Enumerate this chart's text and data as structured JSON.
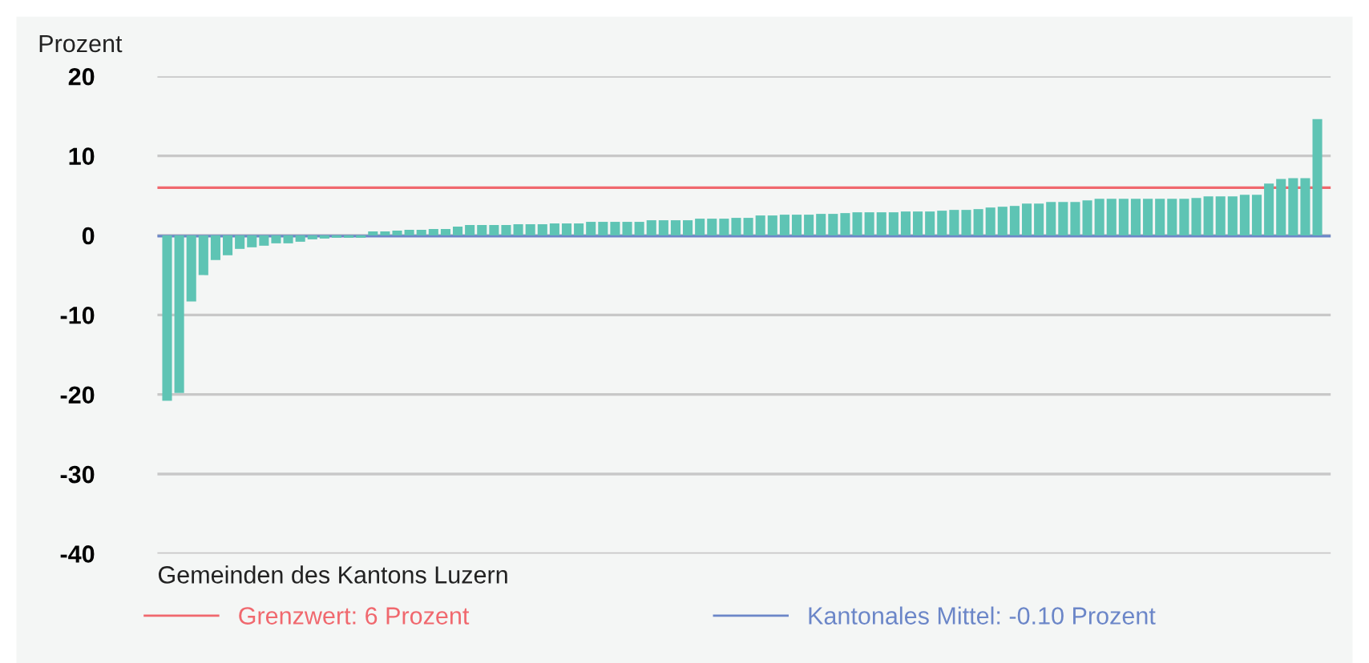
{
  "chart_data": {
    "type": "bar",
    "ylabel": "Prozent",
    "xlabel": "Gemeinden des Kantons Luzern",
    "categories": [
      null,
      null,
      null,
      null,
      null,
      null,
      null,
      null,
      null,
      null,
      null,
      null,
      null,
      null,
      null,
      null,
      null,
      null,
      null,
      null,
      null,
      null,
      null,
      null,
      null,
      null,
      null,
      null,
      null,
      null,
      null,
      null,
      null,
      null,
      null,
      null,
      null,
      null,
      null,
      null,
      null,
      null,
      null,
      null,
      null,
      null,
      null,
      null,
      null,
      null,
      null,
      null,
      null,
      null,
      null,
      null,
      null,
      null,
      null,
      null,
      null,
      null,
      null,
      null,
      null,
      null,
      null,
      null,
      null,
      null,
      null,
      null,
      null,
      null,
      null,
      null,
      null,
      null,
      null,
      null,
      null,
      null,
      null,
      null,
      null,
      null,
      null,
      null,
      null,
      null,
      null,
      null,
      null,
      null,
      null,
      null
    ],
    "values": [
      -20.8,
      -19.8,
      -8.3,
      -5.0,
      -3.1,
      -2.5,
      -1.7,
      -1.5,
      -1.3,
      -1.0,
      -1.0,
      -0.8,
      -0.5,
      -0.4,
      -0.3,
      -0.3,
      -0.3,
      0.5,
      0.5,
      0.6,
      0.7,
      0.7,
      0.8,
      0.8,
      1.1,
      1.3,
      1.3,
      1.3,
      1.3,
      1.4,
      1.4,
      1.4,
      1.5,
      1.5,
      1.5,
      1.7,
      1.7,
      1.7,
      1.7,
      1.7,
      1.9,
      1.9,
      1.9,
      1.9,
      2.1,
      2.1,
      2.1,
      2.2,
      2.2,
      2.5,
      2.5,
      2.6,
      2.6,
      2.6,
      2.7,
      2.7,
      2.8,
      2.9,
      2.9,
      2.9,
      2.9,
      3.0,
      3.0,
      3.0,
      3.1,
      3.2,
      3.2,
      3.3,
      3.5,
      3.6,
      3.7,
      4.0,
      4.0,
      4.2,
      4.2,
      4.2,
      4.4,
      4.6,
      4.6,
      4.6,
      4.6,
      4.6,
      4.6,
      4.6,
      4.6,
      4.7,
      4.9,
      4.9,
      4.9,
      5.1,
      5.1,
      6.5,
      7.1,
      7.2,
      7.2,
      14.6
    ],
    "color": "#5ec4b4",
    "ylim": [
      -40,
      20
    ],
    "yticks": [
      -40,
      -30,
      -20,
      -10,
      0,
      10,
      20
    ],
    "tick_labels": "y",
    "grid": "y",
    "legend": "bottom",
    "ref_lines": [
      {
        "axis": "y",
        "value": 6,
        "label": "Grenzwert: 6 Prozent",
        "color": "#f0686e",
        "line_style": "solid"
      },
      {
        "axis": "y",
        "value": -0.1,
        "label": "Kantonales Mittel: -0.10 Prozent",
        "color": "#6b86c8",
        "line_style": "solid"
      }
    ]
  }
}
